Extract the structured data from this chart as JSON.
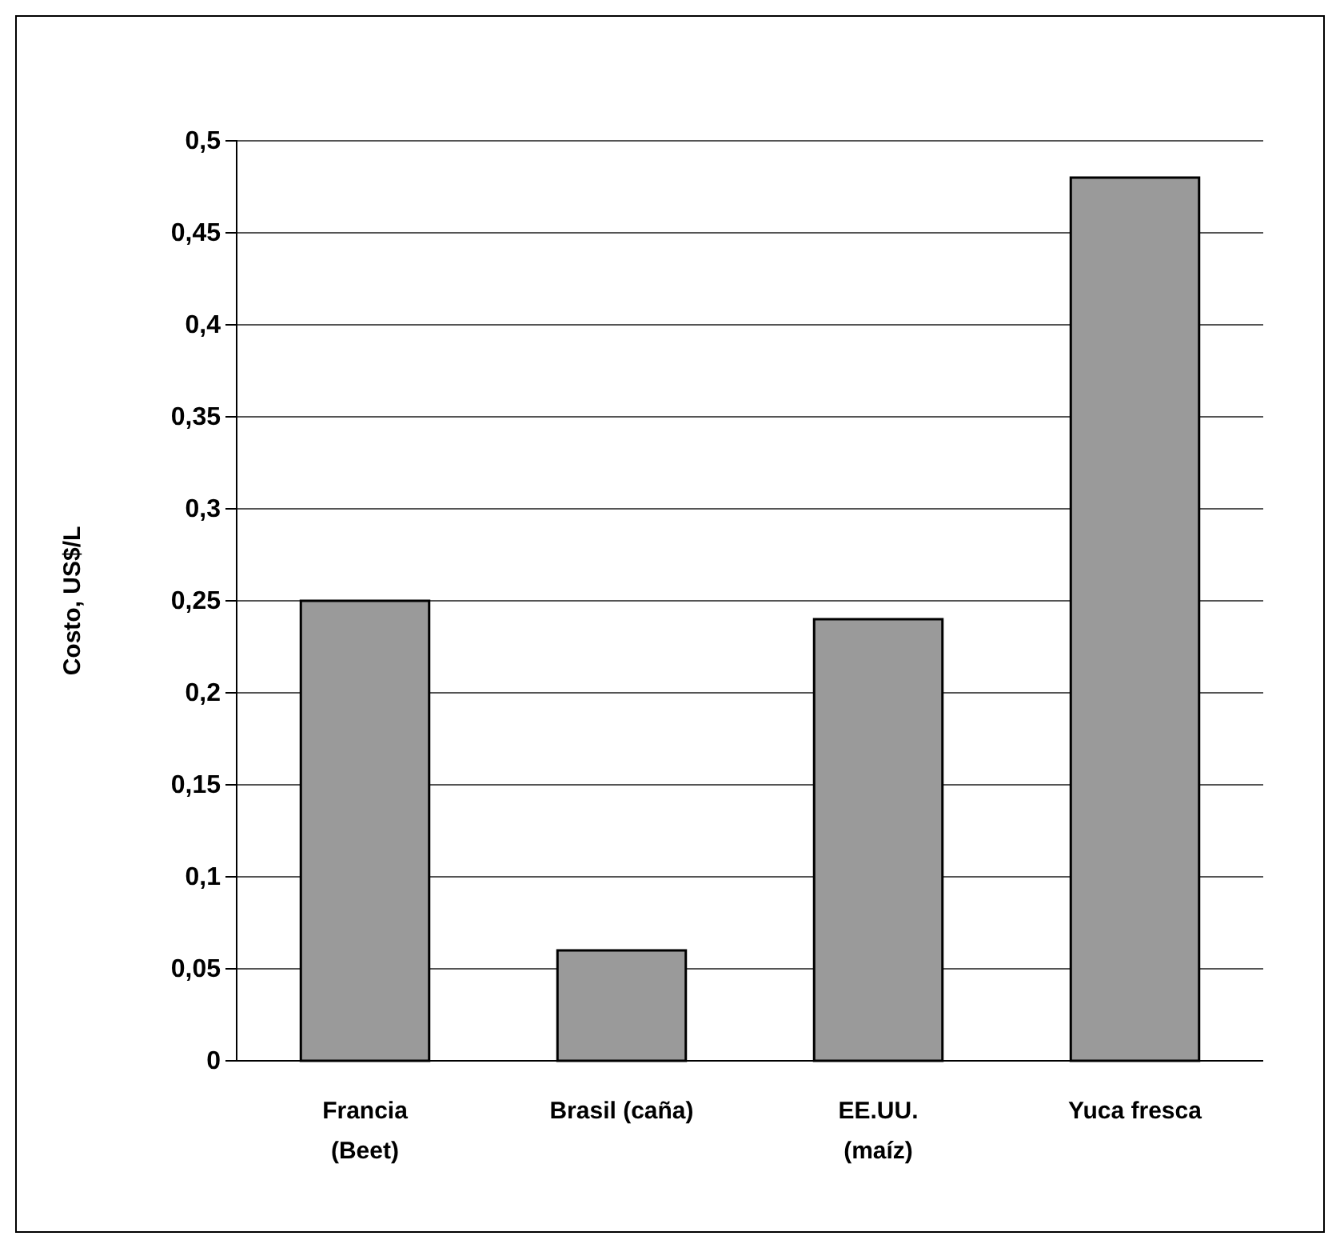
{
  "chart_data": {
    "type": "bar",
    "ylabel": "Costo, US$/L",
    "categories": [
      "Francia\n(Beet)",
      "Brasil (caña)",
      "EE.UU.\n(maíz)",
      "Yuca fresca"
    ],
    "values": [
      0.25,
      0.06,
      0.24,
      0.48
    ],
    "color": "#9a9a9a",
    "ylim": [
      0,
      0.5
    ],
    "yticks": [
      0,
      {
        "value": 0.05,
        "label": "0,05"
      },
      {
        "value": 0.1,
        "label": "0,1"
      },
      {
        "value": 0.15,
        "label": "0,15"
      },
      {
        "value": 0.2,
        "label": "0,2"
      },
      {
        "value": 0.25,
        "label": "0,25"
      },
      {
        "value": 0.3,
        "label": "0,3"
      },
      {
        "value": 0.35,
        "label": "0,35"
      },
      {
        "value": 0.4,
        "label": "0,4"
      },
      {
        "value": 0.45,
        "label": "0,45"
      },
      {
        "value": 0.5,
        "label": "0,5"
      }
    ],
    "grid": "y"
  }
}
